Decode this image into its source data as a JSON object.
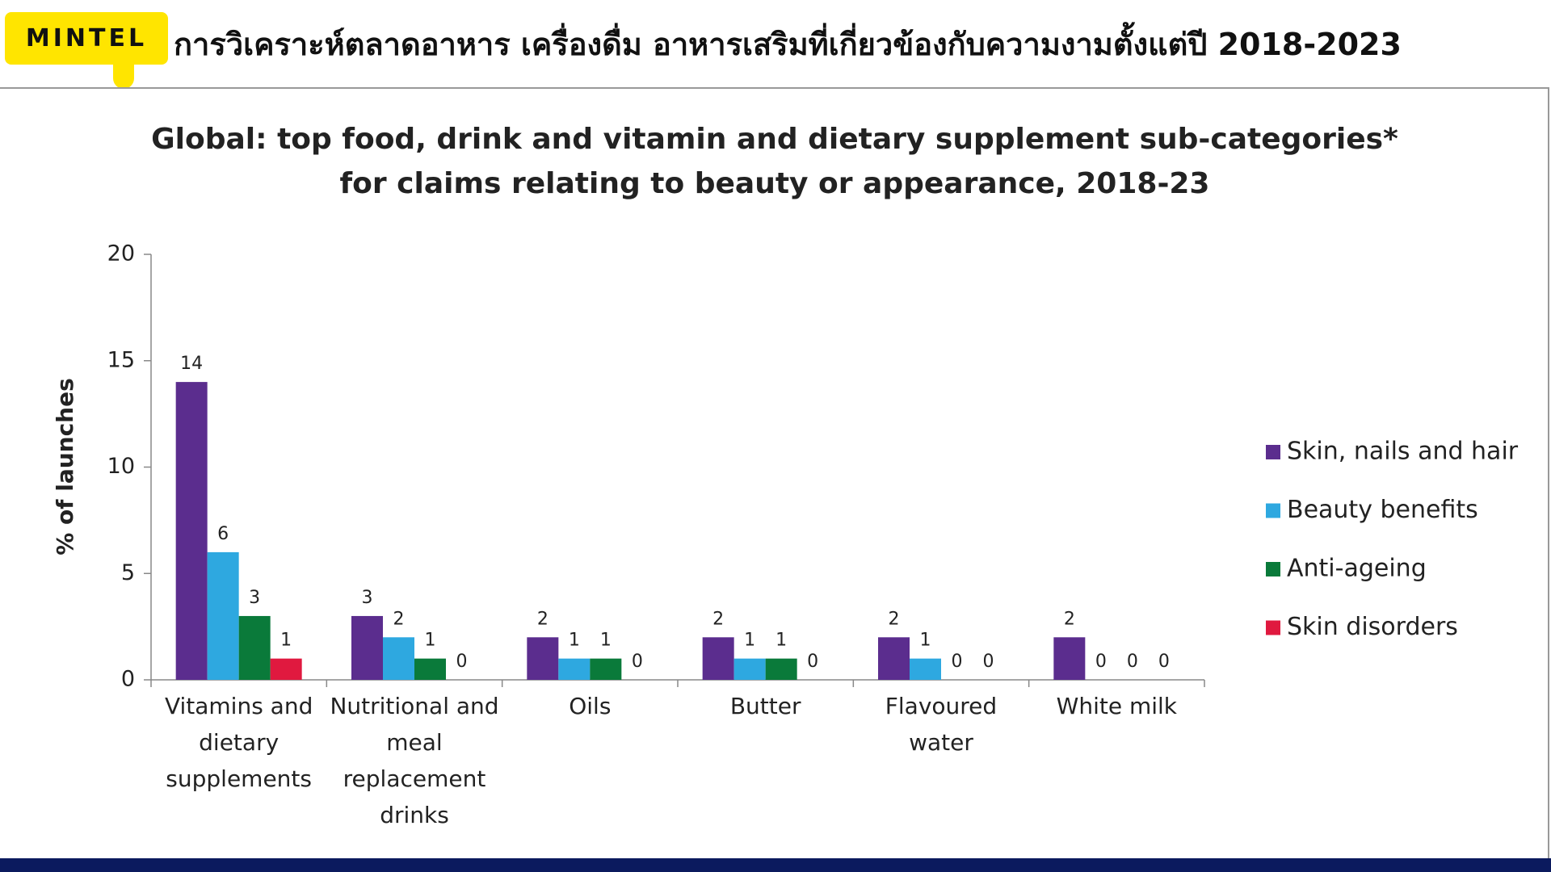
{
  "header": {
    "logo": "MINTEL",
    "title": "การวิเคราะห์ตลาดอาหาร เครื่องดื่ม อาหารเสริมที่เกี่ยวข้องกับความงามตั้งแต่ปี 2018-2023"
  },
  "chart_data": {
    "type": "bar",
    "title": [
      "Global: top food, drink and vitamin and dietary supplement sub-categories*",
      "for claims relating to beauty or appearance, 2018-23"
    ],
    "y_label": "% of launches",
    "categories": [
      "Vitamins and dietary supplements",
      "Nutritional and meal replacement drinks",
      "Oils",
      "Butter",
      "Flavoured water",
      "White milk"
    ],
    "series": [
      {
        "name": "Skin, nails and hair",
        "color": "#5b2d8e",
        "values": [
          14,
          3,
          2,
          2,
          2,
          2
        ]
      },
      {
        "name": "Beauty benefits",
        "color": "#2ea8e0",
        "values": [
          6,
          2,
          1,
          1,
          1,
          0
        ]
      },
      {
        "name": "Anti-ageing",
        "color": "#0a7a3a",
        "values": [
          3,
          1,
          1,
          1,
          0,
          0
        ]
      },
      {
        "name": "Skin disorders",
        "color": "#e0193f",
        "values": [
          1,
          0,
          0,
          0,
          0,
          0
        ]
      }
    ],
    "ylim": [
      0,
      20
    ],
    "yticks": [
      0,
      5,
      10,
      15,
      20
    ],
    "grid": false,
    "legend": "right"
  }
}
